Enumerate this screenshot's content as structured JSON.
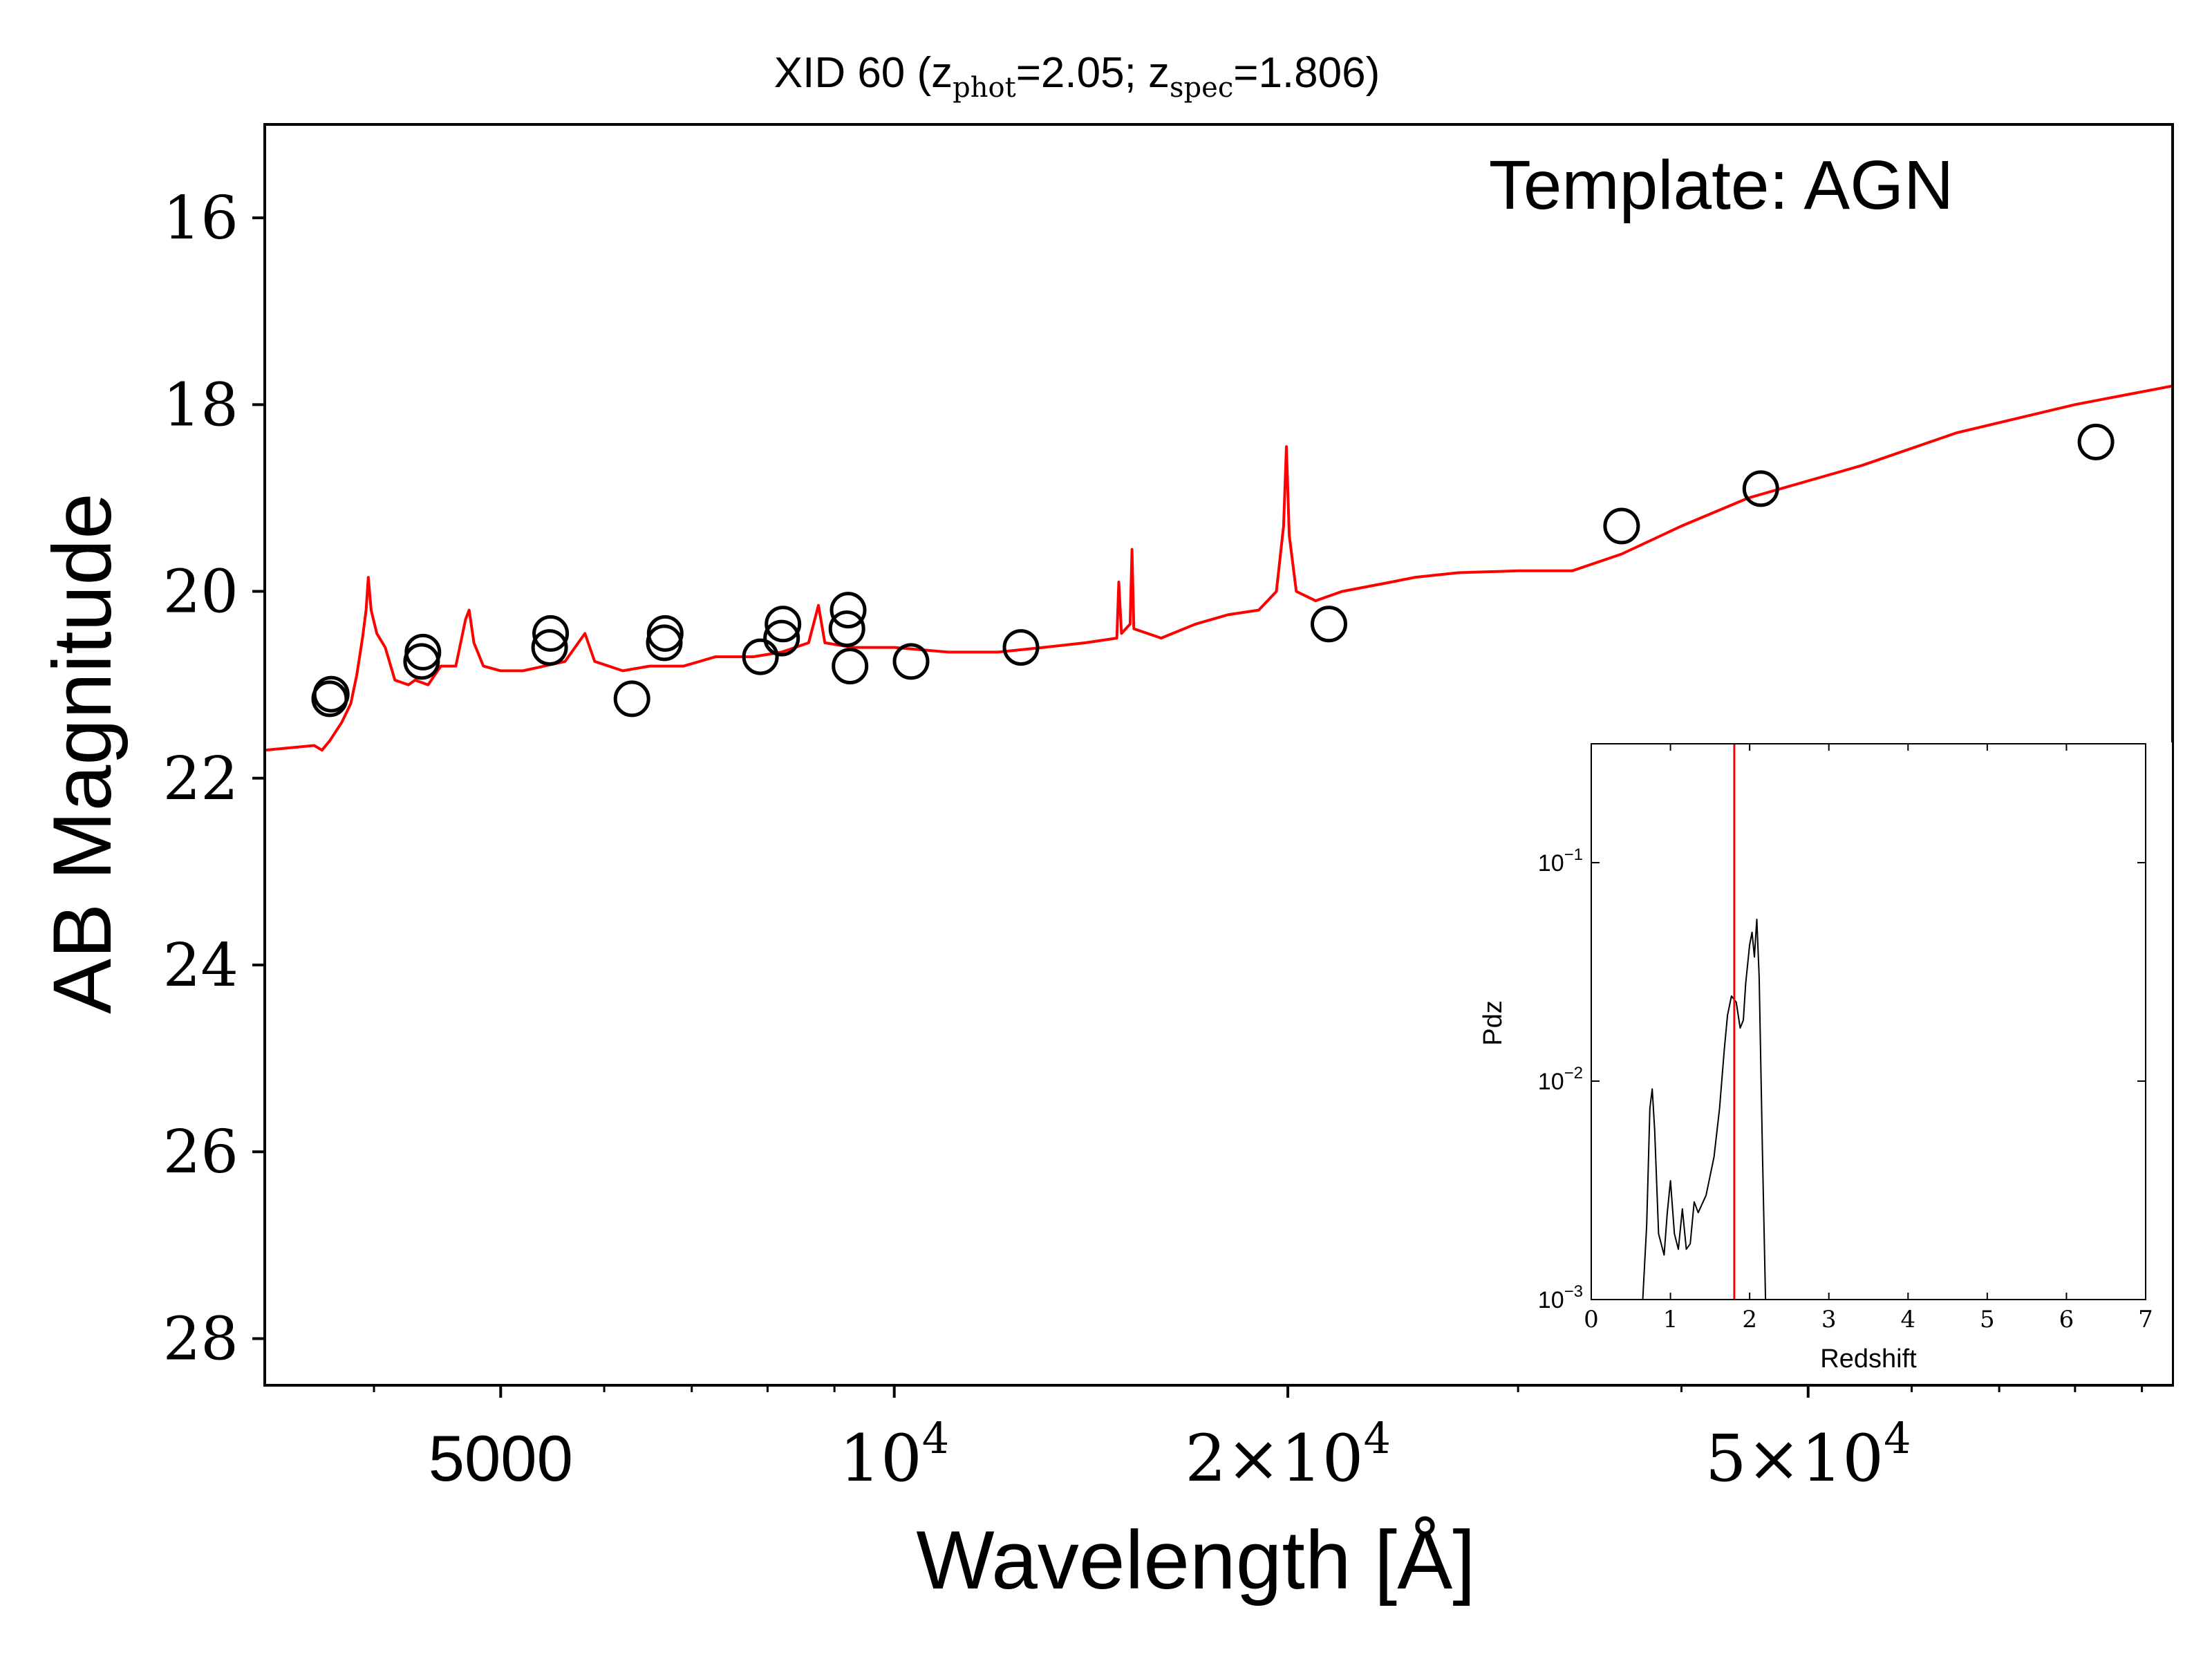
{
  "chart_data": [
    {
      "type": "scatter",
      "title": {
        "prefix": "XID 60 (z",
        "phot_sub": "phot",
        "phot_val": "=2.05; z",
        "spec_sub": "spec",
        "spec_val": "=1.806)"
      },
      "xlabel": "Wavelength [Å]",
      "ylabel": "AB Magnitude",
      "xscale": "log",
      "xlim": [
        3300,
        95000
      ],
      "ylim": [
        28.5,
        15
      ],
      "y_inverted": true,
      "annotation": "Template: AGN",
      "x_ticks": [
        {
          "value": 5000,
          "base": "5000",
          "exp": ""
        },
        {
          "value": 10000,
          "base": "10",
          "exp": "4"
        },
        {
          "value": 20000,
          "base": "2×10",
          "exp": "4"
        },
        {
          "value": 50000,
          "base": "5×10",
          "exp": "4"
        }
      ],
      "y_ticks": [
        "16",
        "18",
        "20",
        "22",
        "24",
        "26",
        "28"
      ],
      "y_tick_values": [
        16,
        18,
        20,
        22,
        24,
        26,
        28
      ],
      "colors": {
        "template": "#ff0000",
        "points": "#000000"
      },
      "series": [
        {
          "kind": "photometry-points",
          "points": [
            [
              3700,
              21.15
            ],
            [
              3710,
              21.1
            ],
            [
              4350,
              20.75
            ],
            [
              4360,
              20.65
            ],
            [
              5450,
              20.6
            ],
            [
              5460,
              20.45
            ],
            [
              6300,
              21.15
            ],
            [
              6670,
              20.55
            ],
            [
              6680,
              20.45
            ],
            [
              7900,
              20.7
            ],
            [
              8200,
              20.5
            ],
            [
              8220,
              20.35
            ],
            [
              9200,
              20.4
            ],
            [
              9220,
              20.2
            ],
            [
              9250,
              20.8
            ],
            [
              10300,
              20.75
            ],
            [
              12500,
              20.6
            ],
            [
              21500,
              20.35
            ],
            [
              36000,
              19.3
            ],
            [
              46000,
              18.9
            ],
            [
              83000,
              18.4
            ]
          ]
        },
        {
          "kind": "template-spectrum",
          "points": [
            [
              3300,
              21.7
            ],
            [
              3600,
              21.65
            ],
            [
              3650,
              21.7
            ],
            [
              3700,
              21.6
            ],
            [
              3780,
              21.4
            ],
            [
              3840,
              21.2
            ],
            [
              3880,
              20.9
            ],
            [
              3920,
              20.5
            ],
            [
              3945,
              20.2
            ],
            [
              3960,
              19.85
            ],
            [
              3980,
              20.2
            ],
            [
              4020,
              20.45
            ],
            [
              4080,
              20.6
            ],
            [
              4150,
              20.95
            ],
            [
              4250,
              21.0
            ],
            [
              4300,
              20.95
            ],
            [
              4400,
              21.0
            ],
            [
              4500,
              20.8
            ],
            [
              4620,
              20.8
            ],
            [
              4700,
              20.3
            ],
            [
              4730,
              20.2
            ],
            [
              4770,
              20.55
            ],
            [
              4850,
              20.8
            ],
            [
              5000,
              20.85
            ],
            [
              5200,
              20.85
            ],
            [
              5400,
              20.8
            ],
            [
              5600,
              20.75
            ],
            [
              5800,
              20.45
            ],
            [
              5900,
              20.75
            ],
            [
              6200,
              20.85
            ],
            [
              6500,
              20.8
            ],
            [
              6900,
              20.8
            ],
            [
              7300,
              20.7
            ],
            [
              7800,
              20.7
            ],
            [
              8200,
              20.65
            ],
            [
              8600,
              20.55
            ],
            [
              8750,
              20.15
            ],
            [
              8850,
              20.55
            ],
            [
              9300,
              20.6
            ],
            [
              10000,
              20.6
            ],
            [
              11000,
              20.65
            ],
            [
              12000,
              20.65
            ],
            [
              13000,
              20.6
            ],
            [
              14000,
              20.55
            ],
            [
              14800,
              20.5
            ],
            [
              14850,
              19.9
            ],
            [
              14920,
              20.45
            ],
            [
              15150,
              20.35
            ],
            [
              15200,
              19.55
            ],
            [
              15250,
              20.4
            ],
            [
              16000,
              20.5
            ],
            [
              17000,
              20.35
            ],
            [
              18000,
              20.25
            ],
            [
              19000,
              20.2
            ],
            [
              19600,
              20.0
            ],
            [
              19850,
              19.3
            ],
            [
              19950,
              18.45
            ],
            [
              20050,
              19.4
            ],
            [
              20300,
              20.0
            ],
            [
              21000,
              20.1
            ],
            [
              22000,
              20.0
            ],
            [
              24000,
              19.9
            ],
            [
              25000,
              19.85
            ],
            [
              27000,
              19.8
            ],
            [
              30000,
              19.78
            ],
            [
              33000,
              19.78
            ],
            [
              36000,
              19.6
            ],
            [
              40000,
              19.3
            ],
            [
              45000,
              19.0
            ],
            [
              55000,
              18.65
            ],
            [
              65000,
              18.3
            ],
            [
              80000,
              18.0
            ],
            [
              95000,
              17.8
            ]
          ]
        }
      ]
    },
    {
      "type": "line",
      "xlabel": "Redshift",
      "ylabel": "Pdz",
      "yscale": "log",
      "xlim": [
        0,
        7
      ],
      "ylim": [
        0.001,
        0.35
      ],
      "x_ticks": [
        "0",
        "1",
        "2",
        "3",
        "4",
        "5",
        "6",
        "7"
      ],
      "y_ticks": [
        {
          "value": 0.1,
          "base": "10",
          "exp": "−1"
        },
        {
          "value": 0.01,
          "base": "10",
          "exp": "−2"
        },
        {
          "value": 0.001,
          "base": "10",
          "exp": "−3"
        }
      ],
      "colors": {
        "pdz": "#000000",
        "zspec_line": "#ff0000"
      },
      "zspec_marker": 1.806,
      "series": [
        {
          "kind": "pdz",
          "points": [
            [
              0.65,
              0.001
            ],
            [
              0.7,
              0.0022
            ],
            [
              0.74,
              0.0075
            ],
            [
              0.77,
              0.0092
            ],
            [
              0.8,
              0.006
            ],
            [
              0.85,
              0.002
            ],
            [
              0.92,
              0.0016
            ],
            [
              0.96,
              0.0025
            ],
            [
              1.0,
              0.0035
            ],
            [
              1.05,
              0.002
            ],
            [
              1.1,
              0.0017
            ],
            [
              1.15,
              0.0026
            ],
            [
              1.2,
              0.0017
            ],
            [
              1.25,
              0.0018
            ],
            [
              1.3,
              0.0028
            ],
            [
              1.35,
              0.0025
            ],
            [
              1.45,
              0.003
            ],
            [
              1.55,
              0.0045
            ],
            [
              1.62,
              0.0075
            ],
            [
              1.68,
              0.014
            ],
            [
              1.72,
              0.02
            ],
            [
              1.77,
              0.0245
            ],
            [
              1.83,
              0.023
            ],
            [
              1.88,
              0.0175
            ],
            [
              1.92,
              0.019
            ],
            [
              1.95,
              0.028
            ],
            [
              2.0,
              0.042
            ],
            [
              2.03,
              0.048
            ],
            [
              2.06,
              0.037
            ],
            [
              2.09,
              0.055
            ],
            [
              2.12,
              0.03
            ],
            [
              2.16,
              0.005
            ],
            [
              2.2,
              0.001
            ]
          ]
        }
      ]
    }
  ]
}
